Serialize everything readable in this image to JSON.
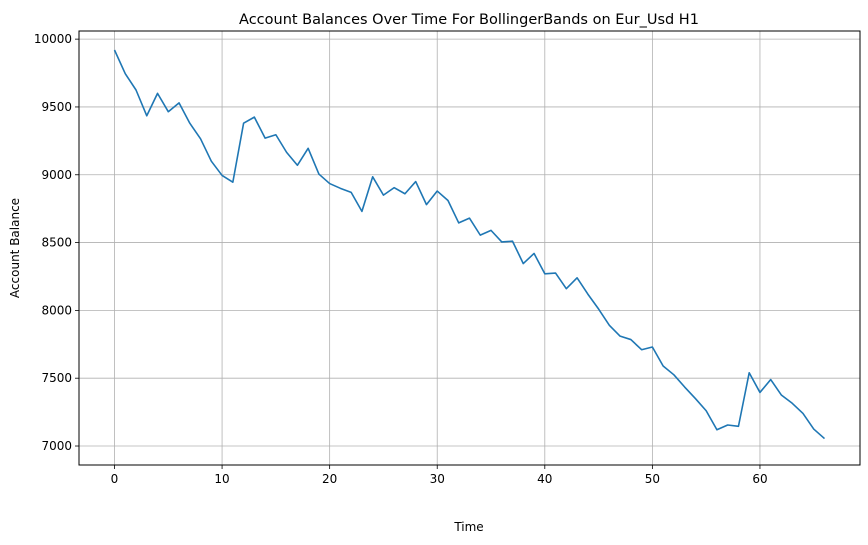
{
  "chart_data": {
    "type": "line",
    "title": "Account Balances Over Time For BollingerBands on Eur_Usd H1",
    "xlabel": "Time",
    "ylabel": "Account Balance",
    "xlim": [
      -3.3,
      69.3
    ],
    "ylim": [
      6860,
      10060
    ],
    "xticks": [
      0,
      10,
      20,
      30,
      40,
      50,
      60
    ],
    "yticks": [
      7000,
      7500,
      8000,
      8500,
      9000,
      9500,
      10000
    ],
    "grid": true,
    "line_color": "#1f77b4",
    "series": [
      {
        "x": [
          0,
          1,
          2,
          3,
          4,
          5,
          6,
          7,
          8,
          9,
          10,
          11,
          12,
          13,
          14,
          15,
          16,
          17,
          18,
          19,
          20,
          21,
          22,
          23,
          24,
          25,
          26,
          27,
          28,
          29,
          30,
          31,
          32,
          33,
          34,
          35,
          36,
          37,
          38,
          39,
          40,
          41,
          42,
          43,
          44,
          45,
          46,
          47,
          48,
          49,
          50,
          51,
          52,
          53,
          54,
          55,
          56,
          57,
          58,
          59,
          60,
          61,
          62,
          63,
          64,
          65,
          66
        ],
        "values": [
          9920,
          9745,
          9625,
          9435,
          9600,
          9465,
          9530,
          9380,
          9265,
          9100,
          8995,
          8945,
          9380,
          9425,
          9270,
          9295,
          9165,
          9070,
          9195,
          9005,
          8935,
          8900,
          8870,
          8730,
          8985,
          8850,
          8905,
          8860,
          8950,
          8780,
          8880,
          8810,
          8645,
          8680,
          8555,
          8590,
          8505,
          8510,
          8345,
          8420,
          8270,
          8275,
          8160,
          8240,
          8120,
          8010,
          7890,
          7810,
          7785,
          7710,
          7730,
          7590,
          7525,
          7435,
          7350,
          7260,
          7120,
          7155,
          7145,
          7540,
          7395,
          7490,
          7375,
          7315,
          7240,
          7125,
          7055
        ]
      }
    ]
  }
}
